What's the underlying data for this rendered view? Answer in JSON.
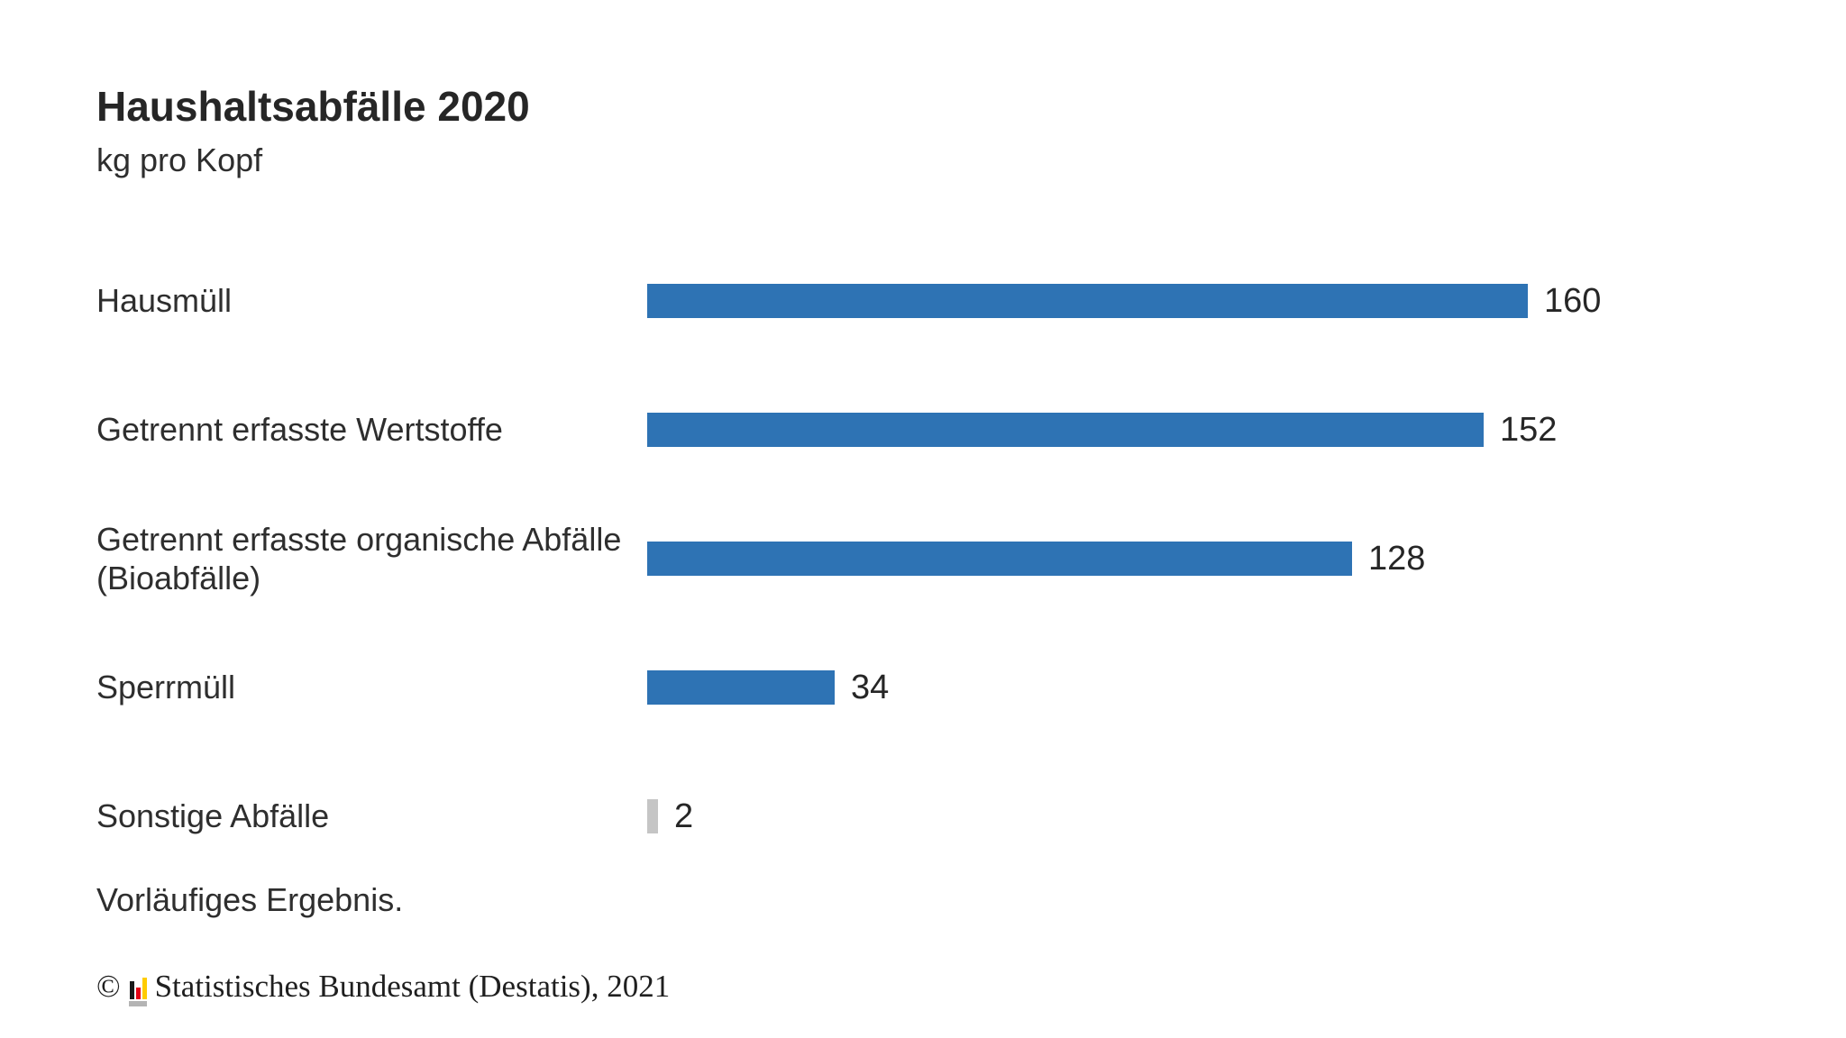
{
  "chart_data": {
    "type": "bar",
    "orientation": "horizontal",
    "title": "Haushaltsabfälle 2020",
    "subtitle": "kg pro Kopf",
    "unit": "kg pro Kopf",
    "grid": false,
    "legend": "none",
    "categories": [
      "Hausmüll",
      "Getrennt erfasste Wertstoffe",
      "Getrennt erfasste organische Abfälle (Bioabfälle)",
      "Sperrmüll",
      "Sonstige Abfälle"
    ],
    "category_display_lines": [
      [
        "Hausmüll"
      ],
      [
        "Getrennt erfasste Wertstoffe"
      ],
      [
        "Getrennt erfasste organische Abfälle",
        "(Bioabfälle)"
      ],
      [
        "Sperrmüll"
      ],
      [
        "Sonstige Abfälle"
      ]
    ],
    "values": [
      160,
      152,
      128,
      34,
      2
    ],
    "value_labels": [
      "160",
      "152",
      "128",
      "34",
      "2"
    ],
    "bar_colors": [
      "#2e73b4",
      "#2e73b4",
      "#2e73b4",
      "#2e73b4",
      "#c5c5c5"
    ]
  },
  "footnote": "Vorläufiges Ergebnis.",
  "copyright": {
    "symbol": "©",
    "text": "Statistisches Bundesamt (Destatis), 2021",
    "logo_icon": "destatis-bar-chart-icon"
  },
  "colors": {
    "bar_primary": "#2e73b4",
    "bar_muted": "#c5c5c5",
    "text_primary": "#262626",
    "logo_black": "#1a1a1a",
    "logo_red": "#e30015",
    "logo_gold": "#ffcc00",
    "logo_base": "#b4b4b4"
  }
}
